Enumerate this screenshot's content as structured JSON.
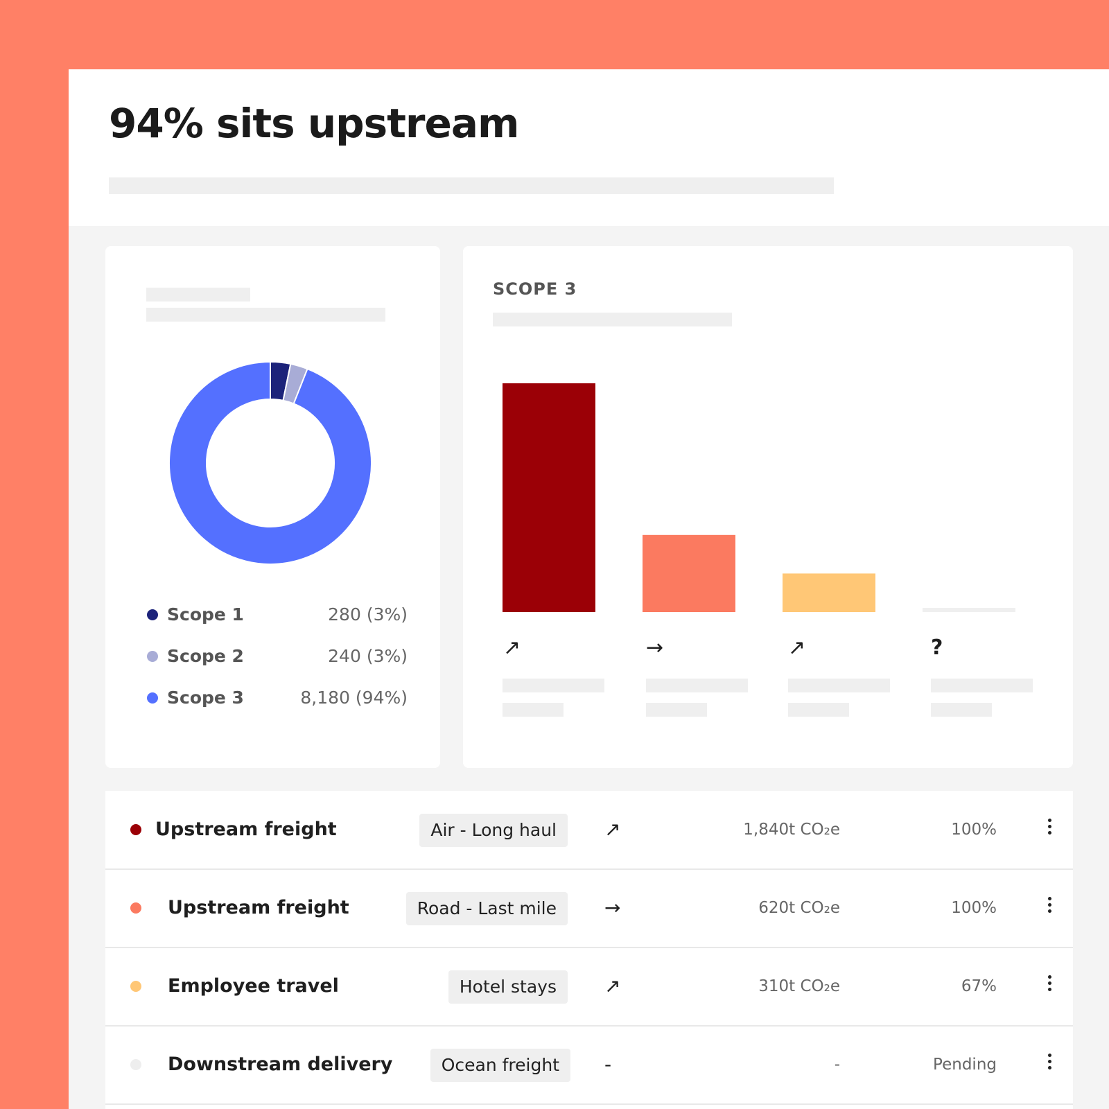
{
  "header": {
    "title": "94% sits upstream"
  },
  "donut_card": {
    "legend": [
      {
        "label": "Scope 1",
        "value": "280 (3%)",
        "color": "#1c237a"
      },
      {
        "label": "Scope 2",
        "value": "240 (3%)",
        "color": "#a8acd6"
      },
      {
        "label": "Scope 3",
        "value": "8,180 (94%)",
        "color": "#5470ff"
      }
    ]
  },
  "bars_card": {
    "title": "SCOPE 3",
    "icons": [
      "north-east-arrow-icon",
      "east-arrow-icon",
      "north-east-arrow-icon",
      "question-icon"
    ],
    "icon_glyphs": [
      "↗",
      "→",
      "↗",
      "?"
    ]
  },
  "chart_data": [
    {
      "type": "pie",
      "labels": [
        "Scope 1",
        "Scope 2",
        "Scope 3"
      ],
      "values": [
        280,
        240,
        8180
      ],
      "colors": [
        "#1c237a",
        "#a8acd6",
        "#5470ff"
      ]
    },
    {
      "type": "bar",
      "title": "SCOPE 3",
      "categories": [
        "",
        "",
        "",
        ""
      ],
      "values": [
        1840,
        620,
        310,
        0
      ],
      "colors": [
        "#9b0006",
        "#fb7a60",
        "#ffc776",
        "#efefef"
      ],
      "ylim": [
        0,
        1840
      ]
    }
  ],
  "table": {
    "rows": [
      {
        "name": "Upstream freight",
        "tag": "Air - Long haul",
        "trend": "↗",
        "trend_icon": "north-east-arrow-icon",
        "amount": "1,840t CO₂e",
        "share": "100%",
        "dot_color": "#9b0006"
      },
      {
        "name": "Upstream freight",
        "tag": "Road - Last mile",
        "trend": "→",
        "trend_icon": "east-arrow-icon",
        "amount": "620t CO₂e",
        "share": "100%",
        "dot_color": "#fb7a60"
      },
      {
        "name": "Employee travel",
        "tag": "Hotel stays",
        "trend": "↗",
        "trend_icon": "north-east-arrow-icon",
        "amount": "310t CO₂e",
        "share": "67%",
        "dot_color": "#ffc776"
      },
      {
        "name": "Downstream delivery",
        "tag": "Ocean freight",
        "trend": "-",
        "trend_icon": "dash-icon",
        "amount": "-",
        "share": "Pending",
        "dot_color": "#eeeeee"
      }
    ]
  }
}
